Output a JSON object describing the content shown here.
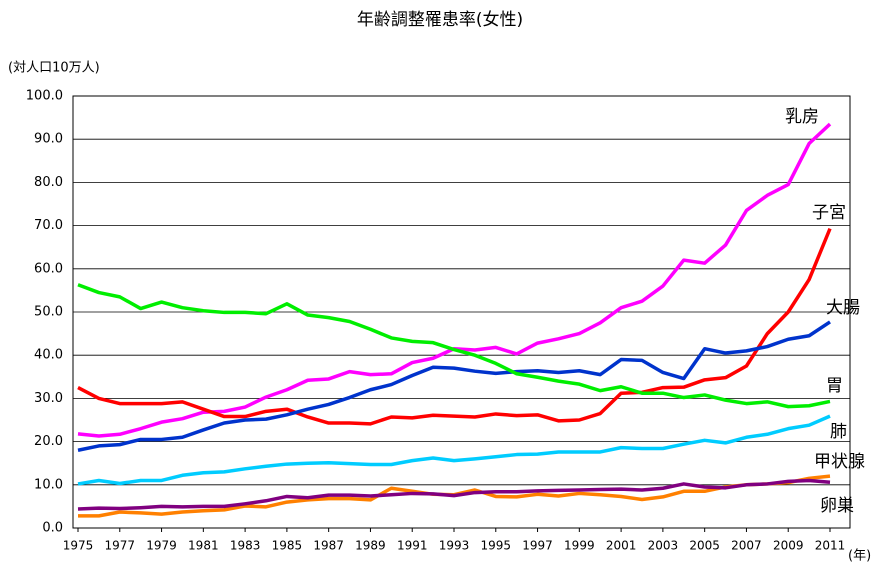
{
  "chart_data": {
    "type": "line",
    "title": "年齢調整罹患率(女性)",
    "y_label": "(対人口10万人)",
    "x_label": "(年)",
    "x": [
      1975,
      1976,
      1977,
      1978,
      1979,
      1980,
      1981,
      1982,
      1983,
      1984,
      1985,
      1986,
      1987,
      1988,
      1989,
      1990,
      1991,
      1992,
      1993,
      1994,
      1995,
      1996,
      1997,
      1998,
      1999,
      2000,
      2001,
      2002,
      2003,
      2004,
      2005,
      2006,
      2007,
      2008,
      2009,
      2010,
      2011
    ],
    "xticks": [
      1975,
      1977,
      1979,
      1981,
      1983,
      1985,
      1987,
      1989,
      1991,
      1993,
      1995,
      1997,
      1999,
      2001,
      2003,
      2005,
      2007,
      2009,
      2011
    ],
    "ylim": [
      0,
      100
    ],
    "yticks": [
      {
        "value": 0,
        "label": "0.0"
      },
      {
        "value": 10,
        "label": "10.0"
      },
      {
        "value": 20,
        "label": "20.0"
      },
      {
        "value": 30,
        "label": "30.0"
      },
      {
        "value": 40,
        "label": "40.0"
      },
      {
        "value": 50,
        "label": "50.0"
      },
      {
        "value": 60,
        "label": "60.0"
      },
      {
        "value": 70,
        "label": "70.0"
      },
      {
        "value": 80,
        "label": "80.0"
      },
      {
        "value": 90,
        "label": "90.0"
      },
      {
        "value": 100,
        "label": "100.0"
      }
    ],
    "grid": true,
    "series": [
      {
        "name": "乳房",
        "color": "#ff00ff",
        "values": [
          21.8,
          21.3,
          21.7,
          23,
          24.5,
          25.3,
          26.8,
          27,
          28,
          30.3,
          32,
          34.2,
          34.5,
          36.2,
          35.5,
          35.7,
          38.3,
          39.3,
          41.5,
          41.2,
          41.8,
          40.3,
          42.8,
          43.8,
          45,
          47.5,
          51,
          52.5,
          56,
          62,
          61.3,
          65.5,
          73.5,
          77,
          79.5,
          89,
          93.5
        ]
      },
      {
        "name": "子宮",
        "color": "#ff0000",
        "values": [
          32.5,
          30,
          28.8,
          28.8,
          28.8,
          29.2,
          27.5,
          25.8,
          25.8,
          27,
          27.5,
          25.7,
          24.3,
          24.3,
          24.1,
          25.7,
          25.5,
          26.1,
          25.9,
          25.7,
          26.4,
          26,
          26.2,
          24.8,
          25,
          26.5,
          31.2,
          31.4,
          32.5,
          32.6,
          34.3,
          34.8,
          37.5,
          45,
          50,
          57.5,
          69.3
        ]
      },
      {
        "name": "大腸",
        "color": "#0033cc",
        "values": [
          18,
          19,
          19.3,
          20.5,
          20.5,
          21,
          22.7,
          24.3,
          25,
          25.2,
          26.2,
          27.5,
          28.6,
          30.2,
          32,
          33.2,
          35.3,
          37.2,
          37,
          36.3,
          35.8,
          36.2,
          36.4,
          36,
          36.4,
          35.5,
          39,
          38.8,
          36,
          34.6,
          41.5,
          40.5,
          41,
          42,
          43.7,
          44.5,
          47.7
        ]
      },
      {
        "name": "胃",
        "color": "#00ee00",
        "values": [
          56.3,
          54.5,
          53.5,
          50.8,
          52.3,
          51,
          50.3,
          49.9,
          49.9,
          49.6,
          51.9,
          49.3,
          48.7,
          47.8,
          46,
          44,
          43.2,
          42.9,
          41.3,
          40,
          38.1,
          35.7,
          34.9,
          34,
          33.3,
          31.8,
          32.7,
          31.2,
          31.2,
          30.2,
          30.8,
          29.6,
          28.8,
          29.2,
          28.1,
          28.3,
          29.3
        ]
      },
      {
        "name": "肺",
        "color": "#00ccff",
        "values": [
          10.2,
          11,
          10.3,
          11,
          11,
          12.2,
          12.8,
          13,
          13.7,
          14.3,
          14.8,
          15,
          15.1,
          14.9,
          14.7,
          14.7,
          15.6,
          16.2,
          15.6,
          16,
          16.5,
          17,
          17.1,
          17.6,
          17.6,
          17.6,
          18.6,
          18.4,
          18.4,
          19.4,
          20.3,
          19.7,
          21,
          21.7,
          23,
          23.8,
          25.9
        ]
      },
      {
        "name": "甲状腺",
        "color": "#ff8000",
        "values": [
          2.8,
          2.8,
          3.7,
          3.5,
          3.2,
          3.7,
          4,
          4.2,
          5.1,
          4.9,
          6,
          6.5,
          6.8,
          6.8,
          6.5,
          9.2,
          8.5,
          7.8,
          7.7,
          8.8,
          7.3,
          7.2,
          7.8,
          7.4,
          8,
          7.7,
          7.3,
          6.6,
          7.2,
          8.5,
          8.5,
          9.5,
          10,
          10.2,
          10.5,
          11.5,
          12
        ]
      },
      {
        "name": "卵巣",
        "color": "#800080",
        "values": [
          4.4,
          4.6,
          4.5,
          4.7,
          5,
          4.9,
          5,
          5,
          5.6,
          6.3,
          7.3,
          7,
          7.6,
          7.6,
          7.4,
          7.7,
          8,
          7.9,
          7.5,
          8.2,
          8.4,
          8.4,
          8.6,
          8.7,
          8.8,
          8.9,
          9,
          8.8,
          9.2,
          10.2,
          9.5,
          9.3,
          10,
          10.2,
          10.8,
          11,
          10.6
        ]
      }
    ]
  }
}
